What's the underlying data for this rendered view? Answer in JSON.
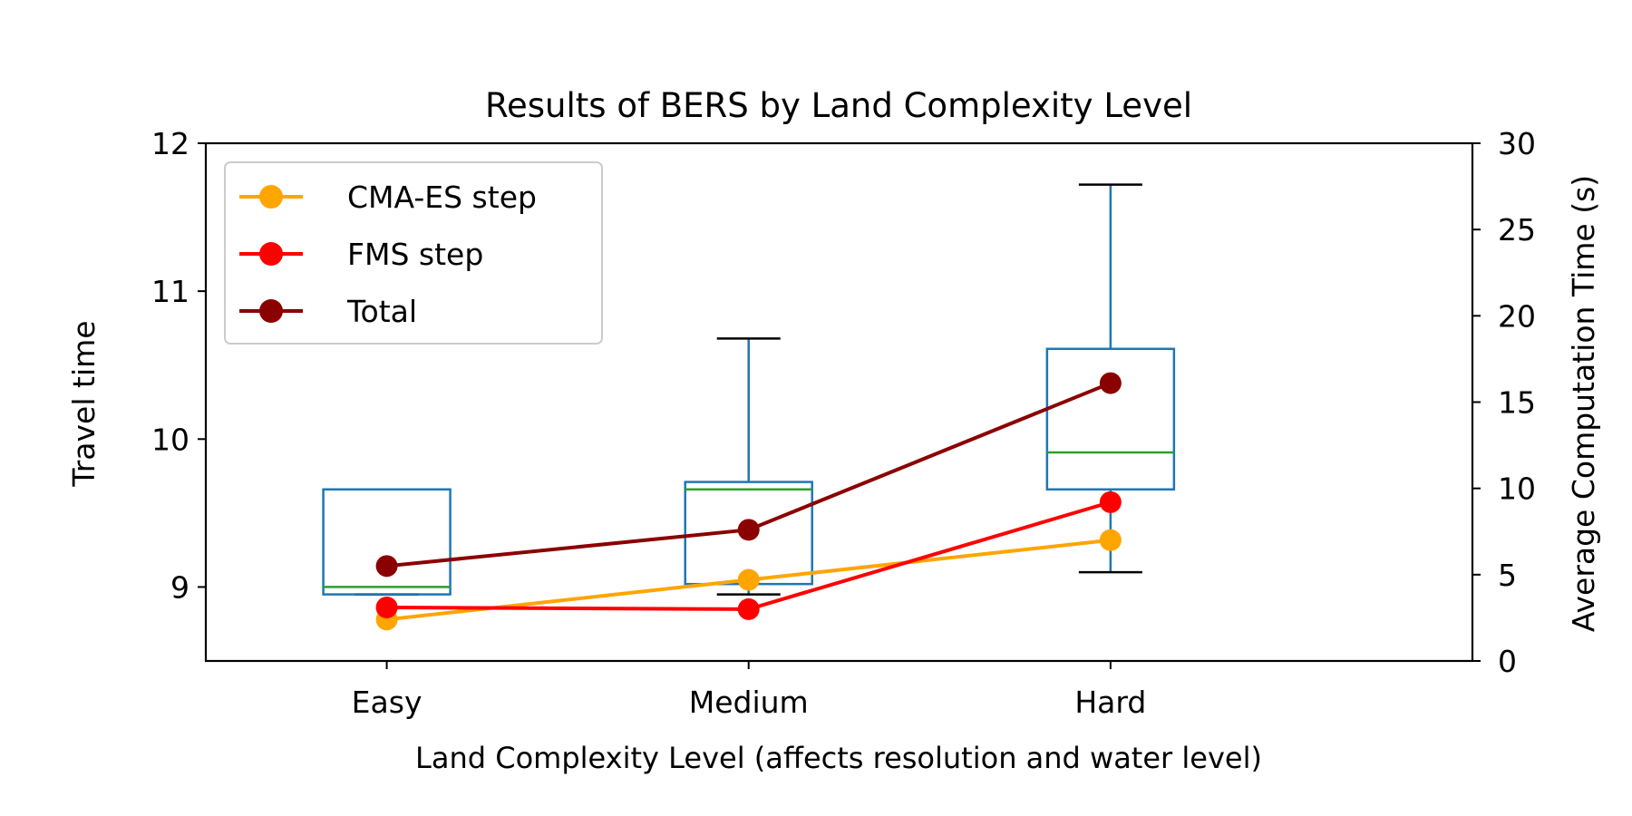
{
  "chart_data": {
    "type": "box",
    "title": "Results of BERS by Land Complexity Level",
    "xlabel": "Land Complexity Level (affects resolution and water level)",
    "ylabel": "Travel time",
    "y2label": "Average Computation Time (s)",
    "categories": [
      "Easy",
      "Medium",
      "Hard"
    ],
    "ylim": [
      8.5,
      12
    ],
    "y2lim": [
      0,
      30
    ],
    "yticks": [
      9,
      10,
      11,
      12
    ],
    "y2ticks": [
      0,
      5,
      10,
      15,
      20,
      25,
      30
    ],
    "grid": false,
    "legend_position": "upper-left",
    "boxplot": [
      {
        "category": "Easy",
        "whisker_low": 8.95,
        "q1": 8.95,
        "median": 9.0,
        "q3": 9.66,
        "whisker_high": 9.66
      },
      {
        "category": "Medium",
        "whisker_low": 8.95,
        "q1": 9.02,
        "median": 9.66,
        "q3": 9.71,
        "whisker_high": 10.68
      },
      {
        "category": "Hard",
        "whisker_low": 9.1,
        "q1": 9.66,
        "median": 9.91,
        "q3": 10.61,
        "whisker_high": 11.72
      }
    ],
    "series": [
      {
        "name": "CMA-ES step",
        "axis": "right",
        "color": "#FFA500",
        "values": [
          2.4,
          4.7,
          7.0
        ]
      },
      {
        "name": "FMS step",
        "axis": "right",
        "color": "#FF0000",
        "values": [
          3.1,
          3.0,
          9.2
        ]
      },
      {
        "name": "Total",
        "axis": "right",
        "color": "#8B0000",
        "values": [
          5.5,
          7.6,
          16.1
        ]
      }
    ],
    "colors": {
      "box": "#1f77b4",
      "median": "#2ca02c",
      "whisker_cap": "#000000",
      "right_axis": "#FF0000"
    }
  }
}
